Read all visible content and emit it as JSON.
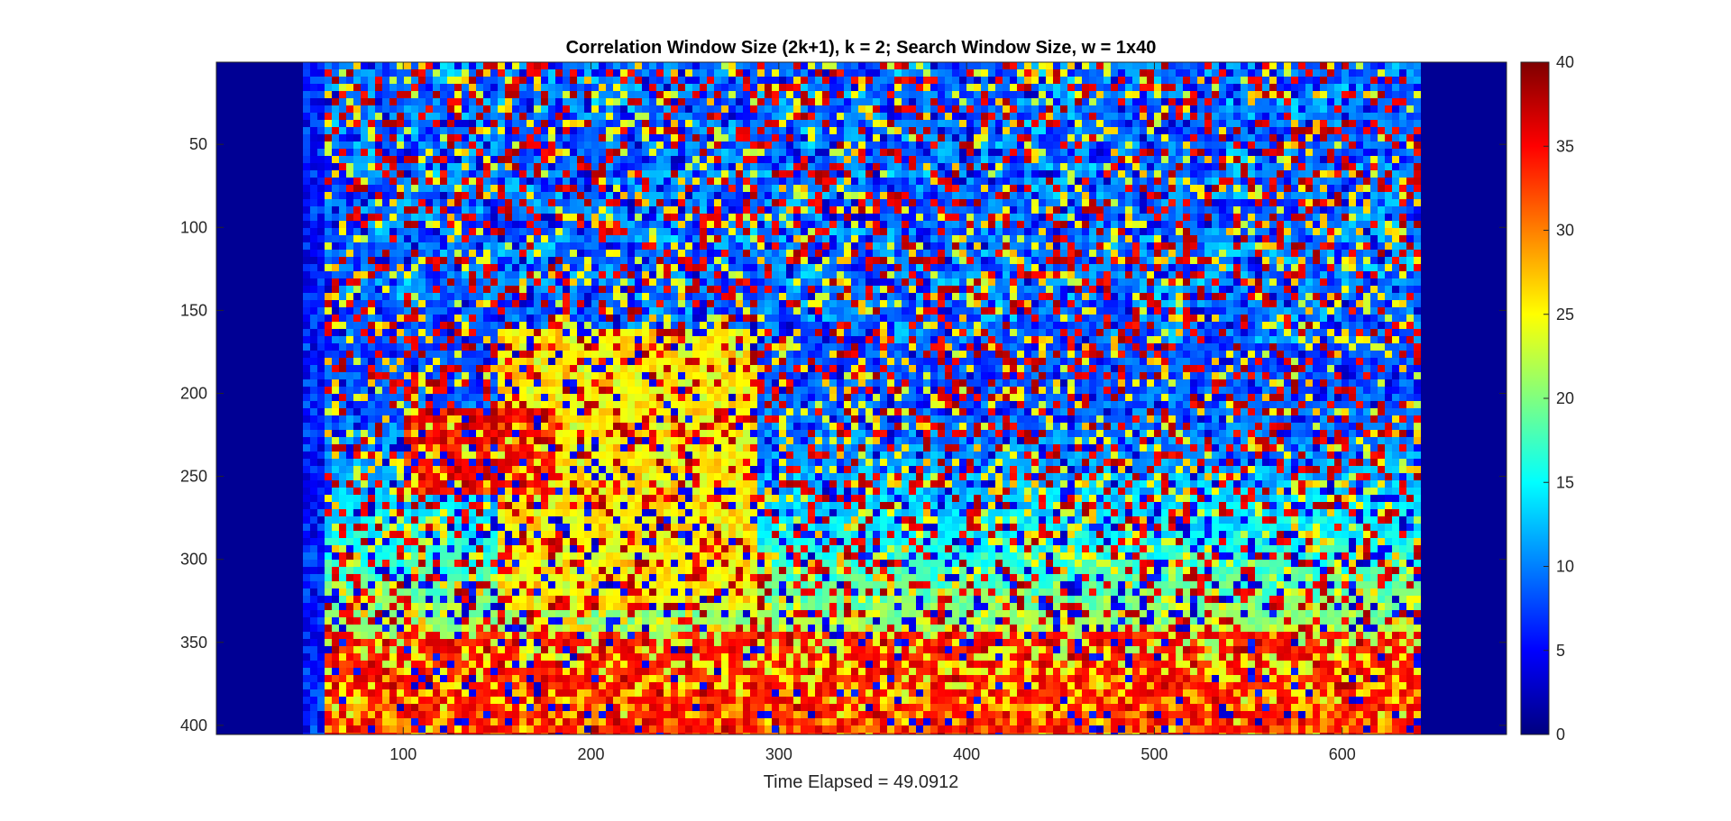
{
  "chart_data": {
    "type": "heatmap",
    "title": "Correlation Window Size (2k+1), k = 2; Search Window Size, w = 1x40",
    "xlabel": "Time Elapsed = 49.0912",
    "ylabel": "",
    "xlim": [
      0.5,
      687.5
    ],
    "ylim": [
      0.5,
      405.5
    ],
    "y_direction": "reverse",
    "x_ticks": [
      100,
      200,
      300,
      400,
      500,
      600
    ],
    "y_ticks": [
      50,
      100,
      150,
      200,
      250,
      300,
      350,
      400
    ],
    "x_tick_labels": [
      "100",
      "200",
      "300",
      "400",
      "500",
      "600"
    ],
    "y_tick_labels": [
      "50",
      "100",
      "150",
      "200",
      "250",
      "300",
      "350",
      "400"
    ],
    "colormap": "jet",
    "colorbar": {
      "range": [
        0,
        40
      ],
      "ticks": [
        0,
        5,
        10,
        15,
        20,
        25,
        30,
        35,
        40
      ],
      "tick_labels": [
        "0",
        "5",
        "10",
        "15",
        "20",
        "25",
        "30",
        "35",
        "40"
      ],
      "placement": "right"
    },
    "grid": false
  },
  "colors": {
    "jet_low": "#00007F",
    "jet_blue": "#0000FF",
    "jet_cyan": "#00FFFF",
    "jet_yellow": "#FFFF00",
    "jet_red": "#FF0000",
    "jet_high": "#7F0000",
    "axis": "#262626"
  }
}
